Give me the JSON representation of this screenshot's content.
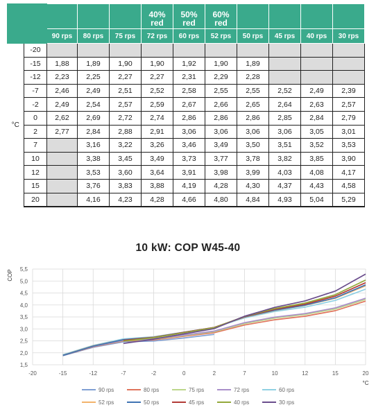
{
  "table": {
    "columns": [
      {
        "red": "",
        "rps": "90 rps"
      },
      {
        "red": "",
        "rps": "80 rps"
      },
      {
        "red": "",
        "rps": "75 rps"
      },
      {
        "red": "40%\nred",
        "rps": "72 rps"
      },
      {
        "red": "50%\nred",
        "rps": "60 rps"
      },
      {
        "red": "60%\nred",
        "rps": "52 rps"
      },
      {
        "red": "",
        "rps": "50 rps"
      },
      {
        "red": "",
        "rps": "45 rps"
      },
      {
        "red": "",
        "rps": "40 rps"
      },
      {
        "red": "",
        "rps": "30 rps"
      }
    ],
    "unit": "°C",
    "rows": [
      {
        "t": "-20",
        "v": [
          "",
          "",
          "",
          "",
          "",
          "",
          "",
          "",
          "",
          ""
        ]
      },
      {
        "t": "-15",
        "v": [
          "1,88",
          "1,89",
          "1,90",
          "1,90",
          "1,92",
          "1,90",
          "1,89",
          "",
          "",
          ""
        ]
      },
      {
        "t": "-12",
        "v": [
          "2,23",
          "2,25",
          "2,27",
          "2,27",
          "2,31",
          "2,29",
          "2,28",
          "",
          "",
          ""
        ]
      },
      {
        "t": "-7",
        "v": [
          "2,46",
          "2,49",
          "2,51",
          "2,52",
          "2,58",
          "2,55",
          "2,55",
          "2,52",
          "2,49",
          "2,39"
        ]
      },
      {
        "t": "-2",
        "v": [
          "2,49",
          "2,54",
          "2,57",
          "2,59",
          "2,67",
          "2,66",
          "2,65",
          "2,64",
          "2,63",
          "2,57"
        ]
      },
      {
        "t": "0",
        "v": [
          "2,62",
          "2,69",
          "2,72",
          "2,74",
          "2,86",
          "2,86",
          "2,86",
          "2,85",
          "2,84",
          "2,79"
        ]
      },
      {
        "t": "2",
        "v": [
          "2,77",
          "2,84",
          "2,88",
          "2,91",
          "3,06",
          "3,06",
          "3,06",
          "3,06",
          "3,05",
          "3,01"
        ]
      },
      {
        "t": "7",
        "v": [
          "",
          "3,16",
          "3,22",
          "3,26",
          "3,46",
          "3,49",
          "3,50",
          "3,51",
          "3,52",
          "3,53"
        ]
      },
      {
        "t": "10",
        "v": [
          "",
          "3,38",
          "3,45",
          "3,49",
          "3,73",
          "3,77",
          "3,78",
          "3,82",
          "3,85",
          "3,90"
        ]
      },
      {
        "t": "12",
        "v": [
          "",
          "3,53",
          "3,60",
          "3,64",
          "3,91",
          "3,98",
          "3,99",
          "4,03",
          "4,08",
          "4,17"
        ]
      },
      {
        "t": "15",
        "v": [
          "",
          "3,76",
          "3,83",
          "3,88",
          "4,19",
          "4,28",
          "4,30",
          "4,37",
          "4,43",
          "4,58"
        ]
      },
      {
        "t": "20",
        "v": [
          "",
          "4,16",
          "4,23",
          "4,28",
          "4,66",
          "4,80",
          "4,84",
          "4,93",
          "5,04",
          "5,29"
        ]
      }
    ]
  },
  "chart_data": {
    "type": "line",
    "title": "10 kW: COP W45-40",
    "xlabel": "°C",
    "ylabel": "COP",
    "x": [
      -15,
      -12,
      -7,
      -2,
      0,
      2,
      7,
      10,
      12,
      15,
      20
    ],
    "xticks": [
      "-20",
      "-15",
      "-12",
      "-7",
      "-2",
      "0",
      "2",
      "7",
      "10",
      "12",
      "15",
      "20"
    ],
    "xaxis_scale": "categorical",
    "ylim": [
      1.5,
      5.5
    ],
    "yticks": [
      "1,5",
      "2,0",
      "2,5",
      "3,0",
      "3,5",
      "4,0",
      "4,5",
      "5,0",
      "5,5"
    ],
    "grid": true,
    "legend_position": "bottom",
    "series": [
      {
        "name": "90 rps",
        "color": "#7f9fd3",
        "values": [
          1.88,
          2.23,
          2.46,
          2.49,
          2.62,
          2.77,
          null,
          null,
          null,
          null,
          null
        ]
      },
      {
        "name": "80 rps",
        "color": "#e0745c",
        "values": [
          1.89,
          2.25,
          2.49,
          2.54,
          2.69,
          2.84,
          3.16,
          3.38,
          3.53,
          3.76,
          4.16
        ]
      },
      {
        "name": "75 rps",
        "color": "#bcd68a",
        "values": [
          1.9,
          2.27,
          2.51,
          2.57,
          2.72,
          2.88,
          3.22,
          3.45,
          3.6,
          3.83,
          4.23
        ]
      },
      {
        "name": "72 rps",
        "color": "#a98ec9",
        "values": [
          1.9,
          2.27,
          2.52,
          2.59,
          2.74,
          2.91,
          3.26,
          3.49,
          3.64,
          3.88,
          4.28
        ]
      },
      {
        "name": "60 rps",
        "color": "#8fd0e3",
        "values": [
          1.92,
          2.31,
          2.58,
          2.67,
          2.86,
          3.06,
          3.46,
          3.73,
          3.91,
          4.19,
          4.66
        ]
      },
      {
        "name": "52 rps",
        "color": "#f2b36b",
        "values": [
          1.9,
          2.29,
          2.55,
          2.66,
          2.86,
          3.06,
          3.49,
          3.77,
          3.98,
          4.28,
          4.8
        ]
      },
      {
        "name": "50 rps",
        "color": "#3f73b3",
        "values": [
          1.89,
          2.28,
          2.55,
          2.65,
          2.86,
          3.06,
          3.5,
          3.78,
          3.99,
          4.3,
          4.84
        ]
      },
      {
        "name": "45 rps",
        "color": "#b23a36",
        "values": [
          null,
          null,
          2.52,
          2.64,
          2.85,
          3.06,
          3.51,
          3.82,
          4.03,
          4.37,
          4.93
        ]
      },
      {
        "name": "40 rps",
        "color": "#93a83a",
        "values": [
          null,
          null,
          2.49,
          2.63,
          2.84,
          3.05,
          3.52,
          3.85,
          4.08,
          4.43,
          5.04
        ]
      },
      {
        "name": "30 rps",
        "color": "#6a4d8c",
        "values": [
          null,
          null,
          2.39,
          2.57,
          2.79,
          3.01,
          3.53,
          3.9,
          4.17,
          4.58,
          5.29
        ]
      }
    ]
  }
}
